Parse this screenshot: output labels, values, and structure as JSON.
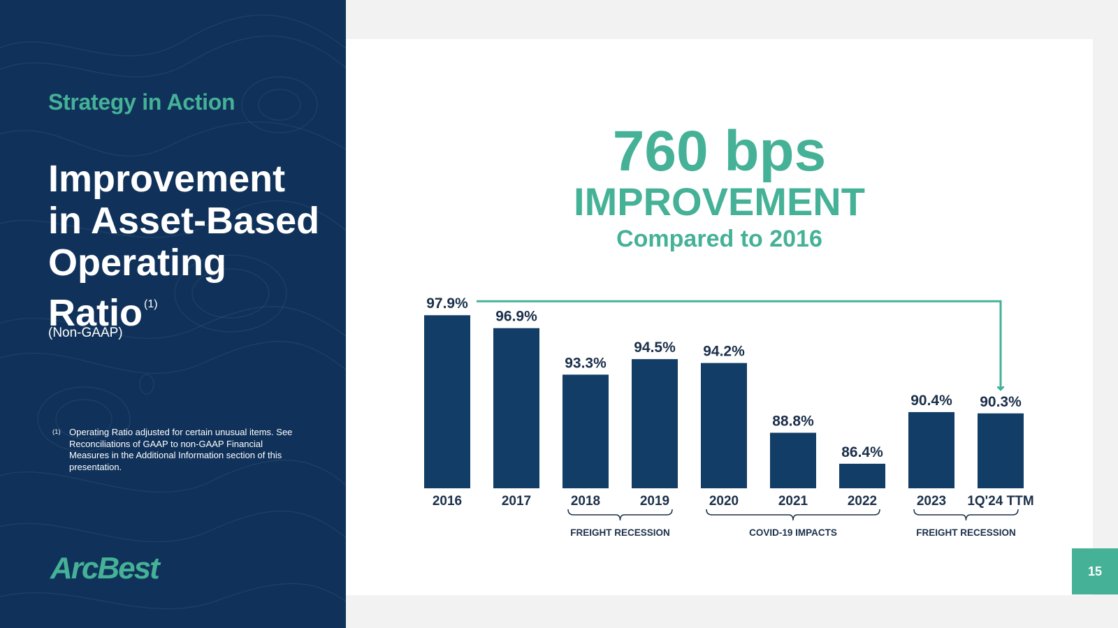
{
  "sidebar": {
    "eyebrow": "Strategy in Action",
    "title_lines": [
      "Improvement",
      "in Asset-Based",
      "Operating",
      "Ratio"
    ],
    "title_sup": "(1)",
    "subtitle": "(Non-GAAP)",
    "footnote_marker": "(1)",
    "footnote_text": "Operating Ratio adjusted for certain unusual items. See Reconciliations of GAAP to non-GAAP Financial Measures in the Additional Information section of this presentation.",
    "logo_text": "ArcBest"
  },
  "highlight": {
    "value": "760 bps",
    "label": "IMPROVEMENT",
    "sub": "Compared to 2016"
  },
  "chart_data": {
    "type": "bar",
    "categories": [
      "2016",
      "2017",
      "2018",
      "2019",
      "2020",
      "2021",
      "2022",
      "2023",
      "1Q'24 TTM"
    ],
    "values": [
      97.9,
      96.9,
      93.3,
      94.5,
      94.2,
      88.8,
      86.4,
      90.4,
      90.3
    ],
    "value_labels": [
      "97.9%",
      "96.9%",
      "93.3%",
      "94.5%",
      "94.2%",
      "88.8%",
      "86.4%",
      "90.4%",
      "90.3%"
    ],
    "unit": "%",
    "ylim": [
      84.5,
      98.4
    ],
    "annotations": [
      {
        "label": "FREIGHT RECESSION",
        "from": "2018",
        "to": "2019"
      },
      {
        "label": "COVID-19 IMPACTS",
        "from": "2020",
        "to": "2022"
      },
      {
        "label": "FREIGHT RECESSION",
        "from": "2023",
        "to": "1Q'24 TTM"
      }
    ],
    "arrow": {
      "from": "2016",
      "to": "1Q'24 TTM"
    }
  },
  "colors": {
    "navy": "#10325a",
    "teal": "#45b197",
    "bar": "#123d66",
    "label": "#1b2f4a"
  },
  "page_number": "15"
}
